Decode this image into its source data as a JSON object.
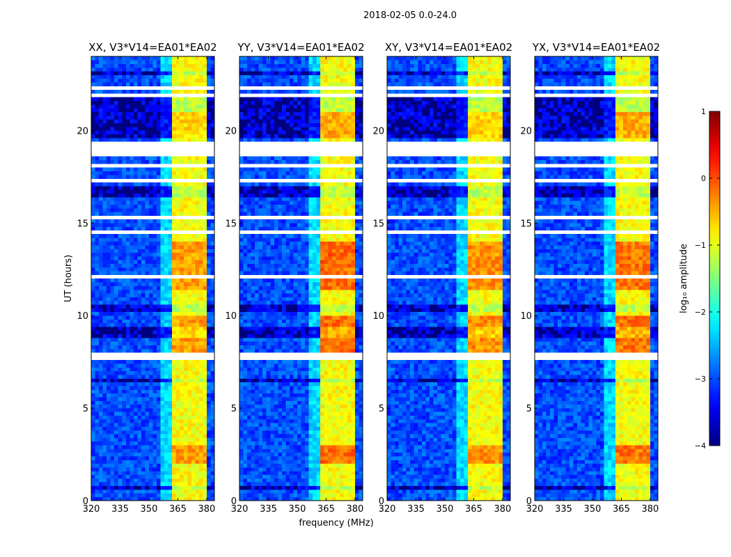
{
  "chart_data": {
    "type": "heatmap",
    "suptitle": "2018-02-05 0.0-24.0",
    "xlabel": "frequency (MHz)",
    "ylabel": "UT (hours)",
    "xlim": [
      320,
      384
    ],
    "ylim": [
      0,
      24
    ],
    "xticks": [
      320,
      335,
      350,
      365,
      380
    ],
    "yticks": [
      0,
      5,
      10,
      15,
      20
    ],
    "grid_resolution": {
      "time_hours": 0.2,
      "freq_mhz": 2
    },
    "panels": [
      {
        "title": "XX, V3*V14=EA01*EA02",
        "strong_boost": 0.2
      },
      {
        "title": "YY, V3*V14=EA01*EA02",
        "strong_boost": 0.45
      },
      {
        "title": "XY, V3*V14=EA01*EA02",
        "strong_boost": 0.25
      },
      {
        "title": "YX, V3*V14=EA01*EA02",
        "strong_boost": 0.4
      }
    ],
    "features": {
      "background_level": -3.0,
      "rfi_band_mhz": [
        362,
        381
      ],
      "rfi_band_level": -0.9,
      "ramp_mhz": [
        356,
        362
      ],
      "ramp_level": -2.3,
      "band_gaps_mhz": [
        366,
        372,
        376
      ],
      "bright_windows_hours": [
        [
          11.4,
          14.0
        ],
        [
          8.0,
          10.0
        ],
        [
          19.6,
          21.0
        ],
        [
          2.0,
          3.0
        ]
      ],
      "dark_windows_hours": [
        [
          19.5,
          21.7
        ],
        [
          16.4,
          17.0
        ],
        [
          6.4,
          6.7
        ],
        [
          0.6,
          0.9
        ],
        [
          10.2,
          10.6
        ],
        [
          8.9,
          9.3
        ],
        [
          23.0,
          23.2
        ]
      ],
      "flagged_windows_hours": [
        [
          18.6,
          19.3
        ],
        [
          7.6,
          8.0
        ],
        [
          22.2,
          22.4
        ],
        [
          1.2,
          1.3
        ],
        [
          3.4,
          3.5
        ],
        [
          4.4,
          4.5
        ],
        [
          5.6,
          5.7
        ],
        [
          14.4,
          14.5
        ],
        [
          15.2,
          15.3
        ],
        [
          17.2,
          17.3
        ],
        [
          18.0,
          18.1
        ],
        [
          21.8,
          21.9
        ],
        [
          6.8,
          6.9
        ],
        [
          12.0,
          12.1
        ],
        [
          2.6,
          2.7
        ]
      ]
    },
    "colorbar": {
      "label": "log₁₀ amplitude",
      "colormap": "jet",
      "range": [
        -4,
        1
      ],
      "ticks": [
        -4,
        -3,
        -2,
        -1,
        0,
        1
      ]
    }
  }
}
